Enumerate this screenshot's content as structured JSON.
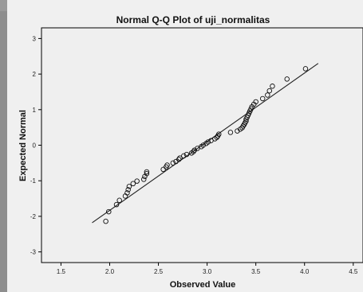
{
  "chart_data": {
    "type": "scatter",
    "title": "Normal Q-Q Plot of uji_normalitas",
    "xlabel": "Observed Value",
    "ylabel": "Expected Normal",
    "xlim": [
      1.3,
      4.6
    ],
    "ylim": [
      -3.3,
      3.3
    ],
    "xticks": [
      1.5,
      2.0,
      2.5,
      3.0,
      3.5,
      4.0,
      4.5
    ],
    "xtick_labels": [
      "1.5",
      "2.0",
      "2.5",
      "3.0",
      "3.5",
      "4.0",
      "4.5"
    ],
    "yticks": [
      3,
      2,
      1,
      0,
      -1,
      -2,
      -3
    ],
    "ytick_labels": [
      "3",
      "2",
      "1",
      "0",
      "-1",
      "-2",
      "-3"
    ],
    "grid": false,
    "reference_line": {
      "x": [
        1.82,
        4.14
      ],
      "y": [
        -2.18,
        2.3
      ]
    },
    "points": [
      {
        "x": 1.96,
        "y": -2.14
      },
      {
        "x": 1.99,
        "y": -1.87
      },
      {
        "x": 2.07,
        "y": -1.67
      },
      {
        "x": 2.1,
        "y": -1.55
      },
      {
        "x": 2.16,
        "y": -1.43
      },
      {
        "x": 2.18,
        "y": -1.34
      },
      {
        "x": 2.19,
        "y": -1.25
      },
      {
        "x": 2.2,
        "y": -1.16
      },
      {
        "x": 2.24,
        "y": -1.08
      },
      {
        "x": 2.28,
        "y": -1.01
      },
      {
        "x": 2.35,
        "y": -0.96
      },
      {
        "x": 2.36,
        "y": -0.88
      },
      {
        "x": 2.38,
        "y": -0.8
      },
      {
        "x": 2.38,
        "y": -0.75
      },
      {
        "x": 2.55,
        "y": -0.68
      },
      {
        "x": 2.58,
        "y": -0.61
      },
      {
        "x": 2.59,
        "y": -0.56
      },
      {
        "x": 2.65,
        "y": -0.5
      },
      {
        "x": 2.68,
        "y": -0.46
      },
      {
        "x": 2.71,
        "y": -0.4
      },
      {
        "x": 2.72,
        "y": -0.36
      },
      {
        "x": 2.76,
        "y": -0.3
      },
      {
        "x": 2.79,
        "y": -0.26
      },
      {
        "x": 2.84,
        "y": -0.22
      },
      {
        "x": 2.86,
        "y": -0.18
      },
      {
        "x": 2.87,
        "y": -0.14
      },
      {
        "x": 2.9,
        "y": -0.09
      },
      {
        "x": 2.94,
        "y": -0.04
      },
      {
        "x": 2.96,
        "y": 0.0
      },
      {
        "x": 2.99,
        "y": 0.05
      },
      {
        "x": 3.01,
        "y": 0.09
      },
      {
        "x": 3.04,
        "y": 0.13
      },
      {
        "x": 3.08,
        "y": 0.18
      },
      {
        "x": 3.1,
        "y": 0.22
      },
      {
        "x": 3.11,
        "y": 0.26
      },
      {
        "x": 3.12,
        "y": 0.31
      },
      {
        "x": 3.24,
        "y": 0.36
      },
      {
        "x": 3.31,
        "y": 0.4
      },
      {
        "x": 3.34,
        "y": 0.45
      },
      {
        "x": 3.36,
        "y": 0.49
      },
      {
        "x": 3.37,
        "y": 0.54
      },
      {
        "x": 3.38,
        "y": 0.58
      },
      {
        "x": 3.39,
        "y": 0.63
      },
      {
        "x": 3.4,
        "y": 0.68
      },
      {
        "x": 3.4,
        "y": 0.73
      },
      {
        "x": 3.41,
        "y": 0.78
      },
      {
        "x": 3.42,
        "y": 0.84
      },
      {
        "x": 3.43,
        "y": 0.9
      },
      {
        "x": 3.44,
        "y": 0.96
      },
      {
        "x": 3.45,
        "y": 1.02
      },
      {
        "x": 3.46,
        "y": 1.08
      },
      {
        "x": 3.48,
        "y": 1.15
      },
      {
        "x": 3.5,
        "y": 1.22
      },
      {
        "x": 3.57,
        "y": 1.31
      },
      {
        "x": 3.62,
        "y": 1.41
      },
      {
        "x": 3.64,
        "y": 1.53
      },
      {
        "x": 3.67,
        "y": 1.66
      },
      {
        "x": 3.82,
        "y": 1.86
      },
      {
        "x": 4.01,
        "y": 2.15
      }
    ]
  }
}
